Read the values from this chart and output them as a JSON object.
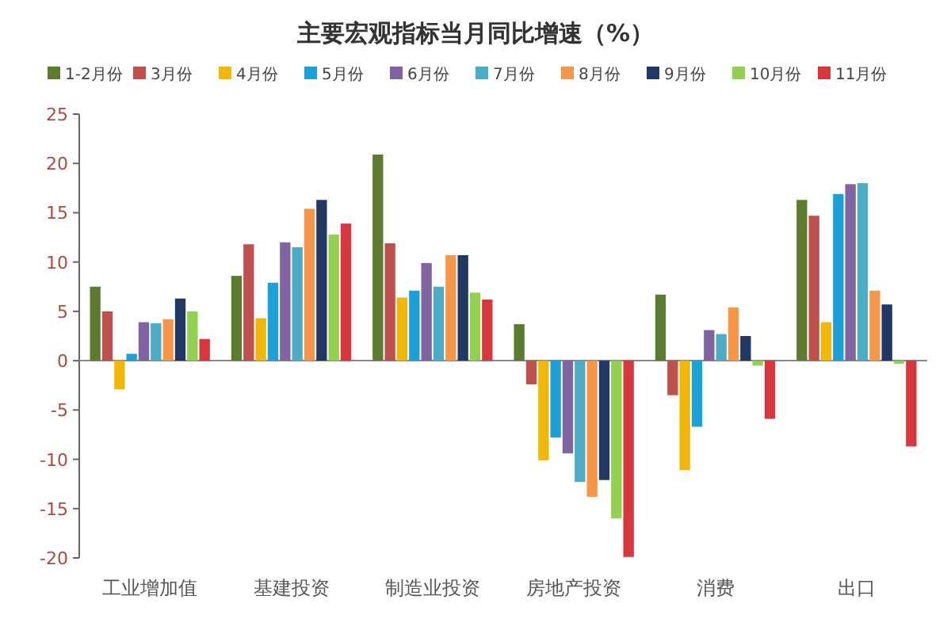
{
  "chart_data": {
    "type": "bar",
    "title": "主要宏观指标当月同比增速（%）",
    "categories": [
      "工业增加值",
      "基建投资",
      "制造业投资",
      "房地产投资",
      "消费",
      "出口"
    ],
    "series": [
      {
        "name": "1-2月份",
        "color": "#5b7b2f",
        "values": [
          7.5,
          8.6,
          20.9,
          3.7,
          6.7,
          16.3
        ]
      },
      {
        "name": "3月份",
        "color": "#c0504d",
        "values": [
          5.0,
          11.8,
          11.9,
          -2.4,
          -3.5,
          14.7
        ]
      },
      {
        "name": "4月份",
        "color": "#f2b705",
        "values": [
          -2.9,
          4.3,
          6.4,
          -10.1,
          -11.1,
          3.9
        ]
      },
      {
        "name": "5月份",
        "color": "#1ba1d8",
        "values": [
          0.7,
          7.9,
          7.1,
          -7.8,
          -6.7,
          16.9
        ]
      },
      {
        "name": "6月份",
        "color": "#8064a2",
        "values": [
          3.9,
          12.0,
          9.9,
          -9.4,
          3.1,
          17.9
        ]
      },
      {
        "name": "7月份",
        "color": "#4bacc6",
        "values": [
          3.8,
          11.5,
          7.5,
          -12.3,
          2.7,
          18.0
        ]
      },
      {
        "name": "8月份",
        "color": "#f79646",
        "values": [
          4.2,
          15.4,
          10.7,
          -13.8,
          5.4,
          7.1
        ]
      },
      {
        "name": "9月份",
        "color": "#1f3864",
        "values": [
          6.3,
          16.3,
          10.7,
          -12.1,
          2.5,
          5.7
        ]
      },
      {
        "name": "10月份",
        "color": "#92d050",
        "values": [
          5.0,
          12.8,
          6.9,
          -16.0,
          -0.5,
          -0.3
        ]
      },
      {
        "name": "11月份",
        "color": "#d9363e",
        "values": [
          2.2,
          13.9,
          6.2,
          -19.9,
          -5.9,
          -8.7
        ]
      }
    ],
    "ylim": [
      -20,
      25
    ],
    "yticks": [
      -20,
      -15,
      -10,
      -5,
      0,
      5,
      10,
      15,
      20,
      25
    ],
    "legend": "top"
  }
}
